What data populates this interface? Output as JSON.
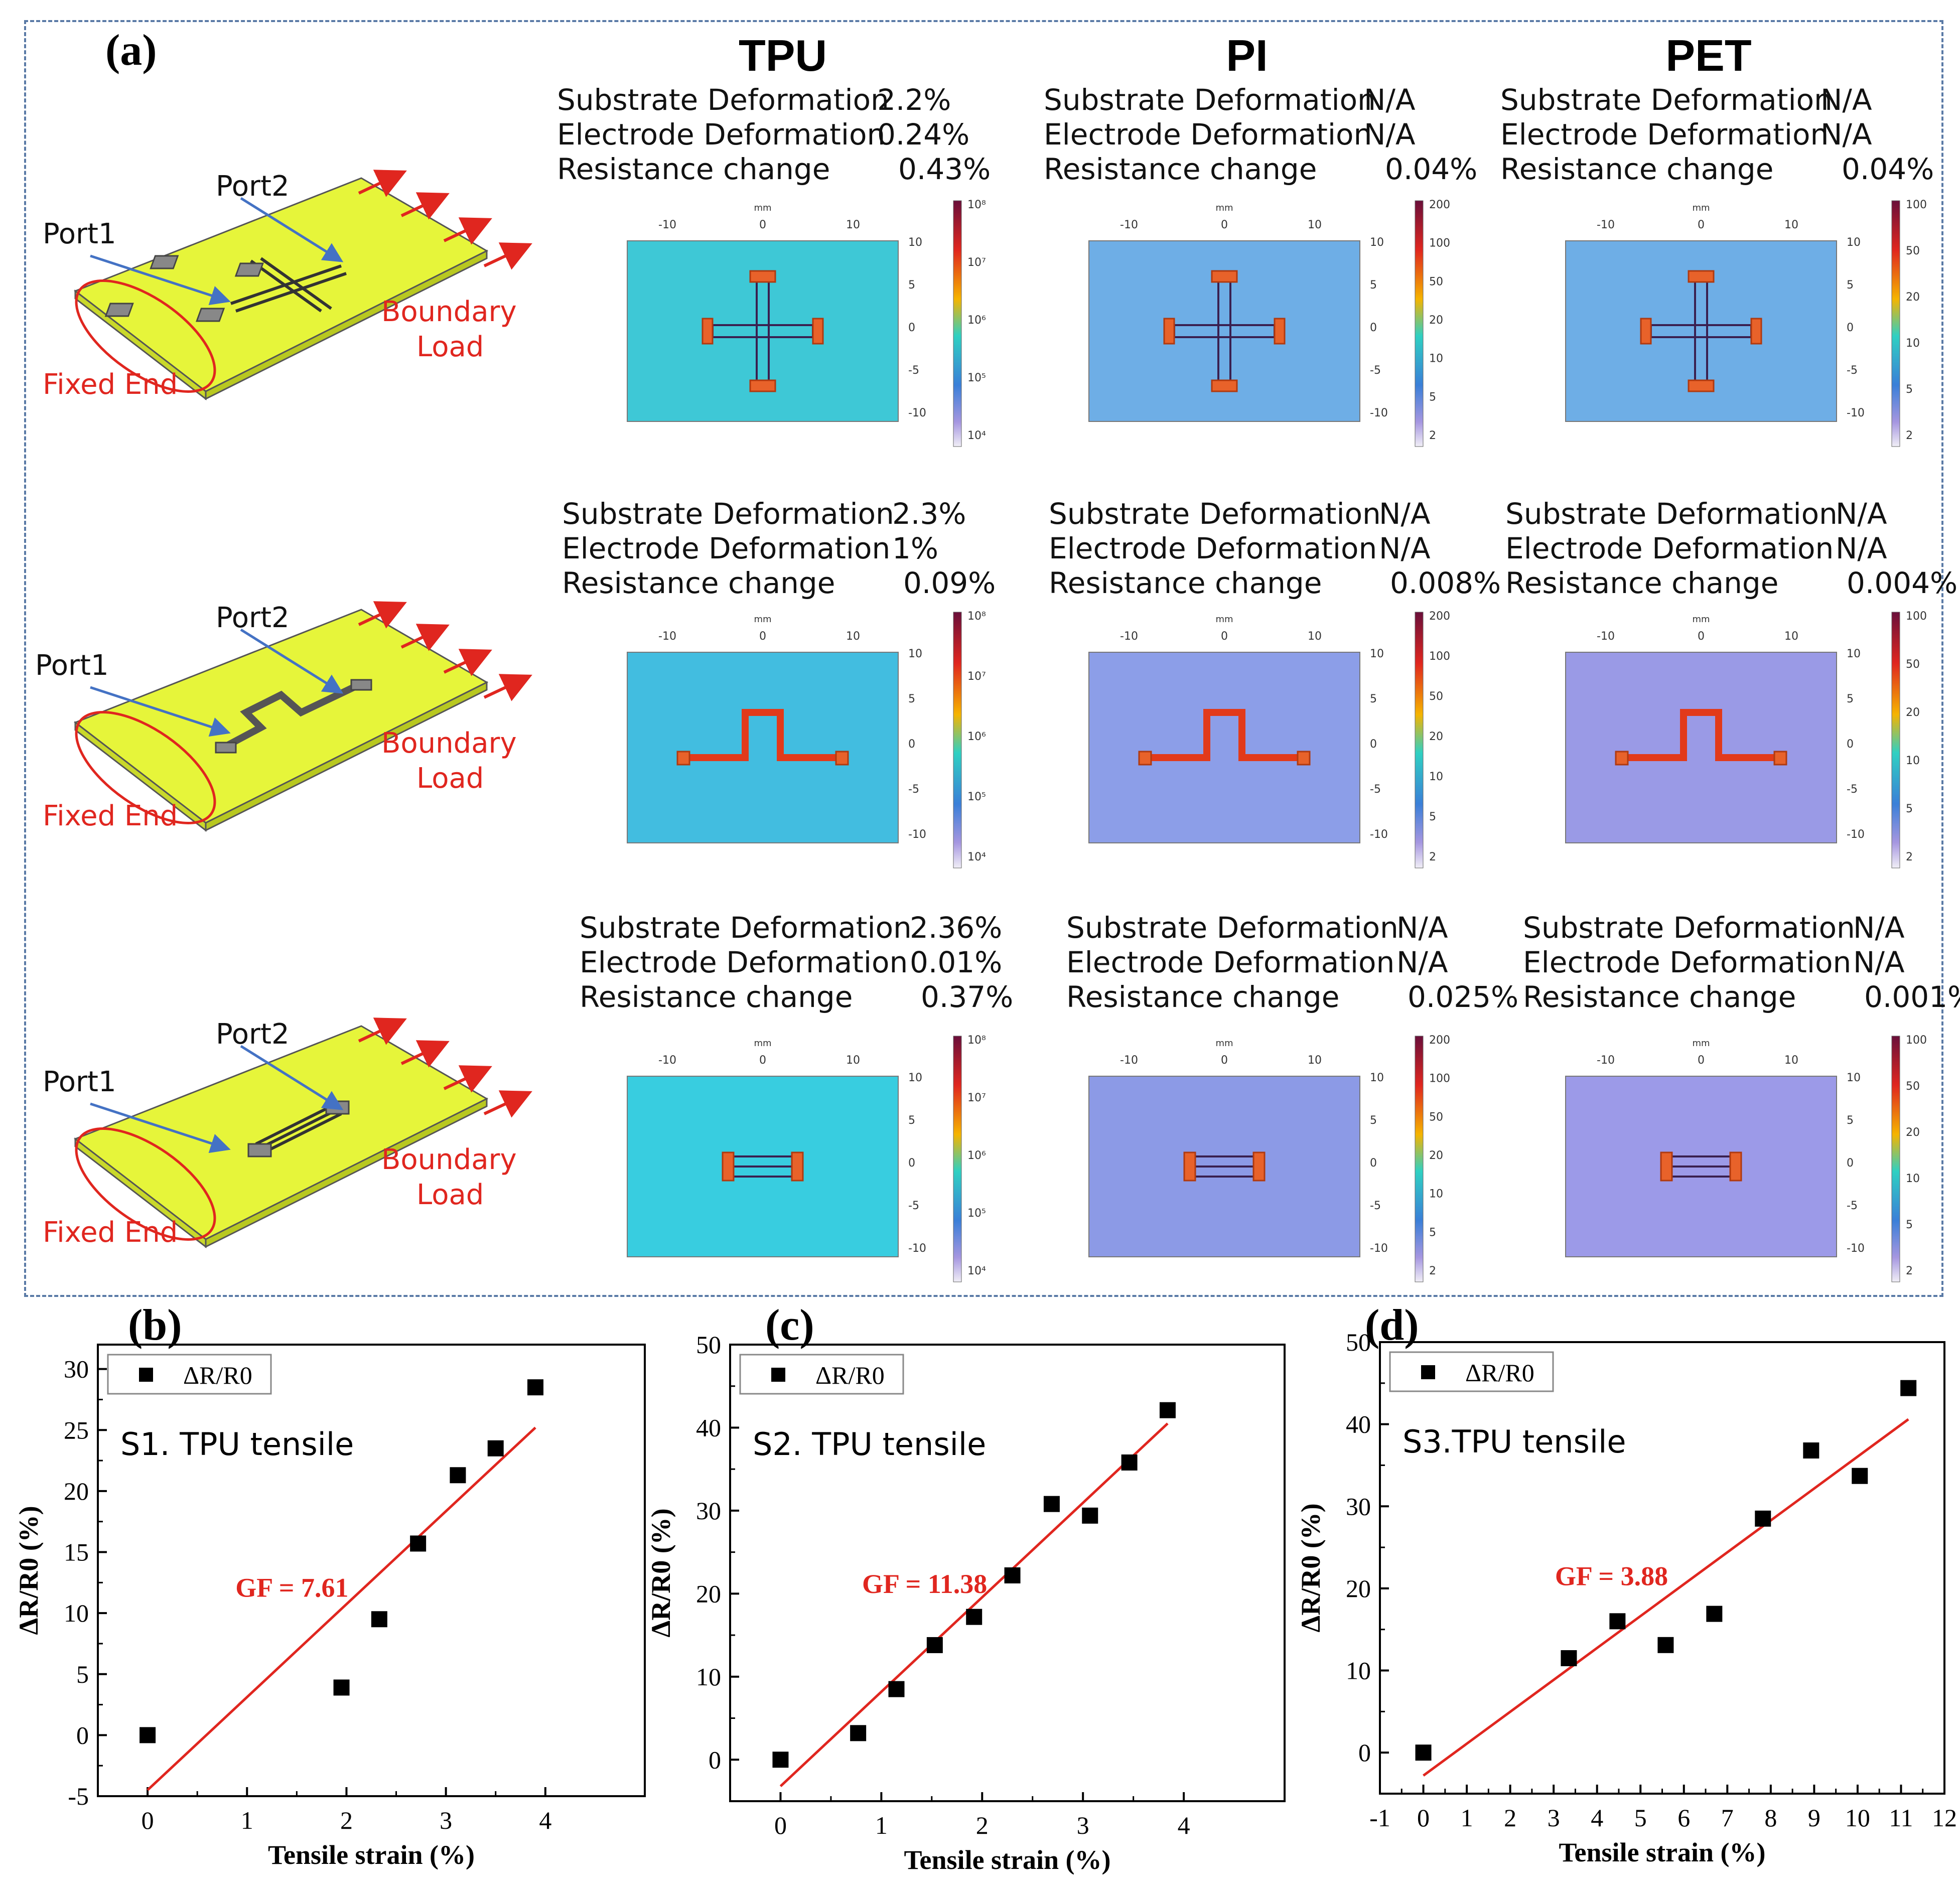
{
  "panel_a": {
    "label": "(a)",
    "columns": [
      "TPU",
      "PI",
      "PET"
    ],
    "schematics": [
      {
        "port1": "Port1",
        "port2": "Port2",
        "boundary": "Boundary",
        "load": "Load",
        "fixed_end": "Fixed End"
      },
      {
        "port1": "Port1",
        "port2": "Port2",
        "boundary": "Boundary",
        "load": "Load",
        "fixed_end": "Fixed End"
      },
      {
        "port1": "Port1",
        "port2": "Port2",
        "boundary": "Boundary",
        "load": "Load",
        "fixed_end": "Fixed End"
      }
    ],
    "labels": {
      "substrate": "Substrate Deformation",
      "electrode": "Electrode Deformation",
      "resistance": "Resistance change"
    },
    "stats": [
      [
        {
          "substrate": "2.2%",
          "electrode": "0.24%",
          "resistance": "0.43%"
        },
        {
          "substrate": "N/A",
          "electrode": "N/A",
          "resistance": "0.04%"
        },
        {
          "substrate": "N/A",
          "electrode": "N/A",
          "resistance": "0.04%"
        }
      ],
      [
        {
          "substrate": "2.3%",
          "electrode": "1%",
          "resistance": "0.09%"
        },
        {
          "substrate": "N/A",
          "electrode": "N/A",
          "resistance": "0.008%"
        },
        {
          "substrate": "N/A",
          "electrode": "N/A",
          "resistance": "0.004%"
        }
      ],
      [
        {
          "substrate": "2.36%",
          "electrode": "0.01%",
          "resistance": "0.37%"
        },
        {
          "substrate": "N/A",
          "electrode": "N/A",
          "resistance": "0.025%"
        },
        {
          "substrate": "N/A",
          "electrode": "N/A",
          "resistance": "0.001%"
        }
      ]
    ],
    "sim_axis": {
      "unit": "mm",
      "x_ticks": [
        "-10",
        "0",
        "10"
      ],
      "y_ticks": [
        "10",
        "5",
        "0",
        "-5",
        "-10"
      ]
    },
    "colorbars": {
      "TPU": [
        "10⁸",
        "10⁷",
        "10⁶",
        "10⁵",
        "10⁴"
      ],
      "PI": [
        "200",
        "100",
        "50",
        "20",
        "10",
        "5",
        "2"
      ],
      "PET": [
        "100",
        "50",
        "20",
        "10",
        "5",
        "2"
      ]
    }
  },
  "chart_data": [
    {
      "panel": "(b)",
      "type": "scatter",
      "title": "S1. TPU tensile",
      "legend": "ΔR/R0",
      "xlabel": "Tensile strain (%)",
      "ylabel": "ΔR/R0 (%)",
      "xlim": [
        -0.5,
        5
      ],
      "ylim": [
        -5,
        32
      ],
      "xticks": [
        0,
        1,
        2,
        3,
        4
      ],
      "yticks": [
        -5,
        0,
        5,
        10,
        15,
        20,
        25,
        30
      ],
      "x": [
        0,
        1.95,
        2.33,
        2.72,
        3.12,
        3.5,
        3.9
      ],
      "y": [
        0,
        3.9,
        9.5,
        15.7,
        21.3,
        23.5,
        28.5
      ],
      "fit": {
        "label": "GF = 7.61",
        "x": [
          0,
          3.9
        ],
        "y": [
          -4.5,
          25.2
        ]
      }
    },
    {
      "panel": "(c)",
      "type": "scatter",
      "title": "S2. TPU tensile",
      "legend": "ΔR/R0",
      "xlabel": "Tensile strain (%)",
      "ylabel": "ΔR/R0 (%)",
      "xlim": [
        -0.5,
        5
      ],
      "ylim": [
        -5,
        50
      ],
      "xticks": [
        0,
        1,
        2,
        3,
        4
      ],
      "yticks": [
        0,
        10,
        20,
        30,
        40,
        50
      ],
      "x": [
        0,
        0.77,
        1.15,
        1.53,
        1.92,
        2.3,
        2.69,
        3.07,
        3.46,
        3.84
      ],
      "y": [
        0,
        3.2,
        8.5,
        13.8,
        17.2,
        22.2,
        30.8,
        29.4,
        35.8,
        42.1
      ],
      "fit": {
        "label": "GF = 11.38",
        "x": [
          0,
          3.84
        ],
        "y": [
          -3.2,
          40.5
        ]
      }
    },
    {
      "panel": "(d)",
      "type": "scatter",
      "title": "S3.TPU tensile",
      "legend": "ΔR/R0",
      "xlabel": "Tensile strain (%)",
      "ylabel": "ΔR/R0 (%)",
      "xlim": [
        -1,
        12
      ],
      "ylim": [
        -5,
        50
      ],
      "xticks": [
        -1,
        0,
        1,
        2,
        3,
        4,
        5,
        6,
        7,
        8,
        9,
        10,
        11,
        12
      ],
      "yticks": [
        0,
        10,
        20,
        30,
        40,
        50
      ],
      "x": [
        0,
        3.35,
        4.47,
        5.58,
        6.7,
        7.82,
        8.93,
        10.05,
        11.17
      ],
      "y": [
        0,
        11.5,
        16.0,
        13.1,
        16.9,
        28.5,
        36.8,
        33.7,
        44.4
      ],
      "fit": {
        "label": "GF = 3.88",
        "x": [
          0,
          11.17
        ],
        "y": [
          -2.8,
          40.6
        ]
      }
    }
  ]
}
